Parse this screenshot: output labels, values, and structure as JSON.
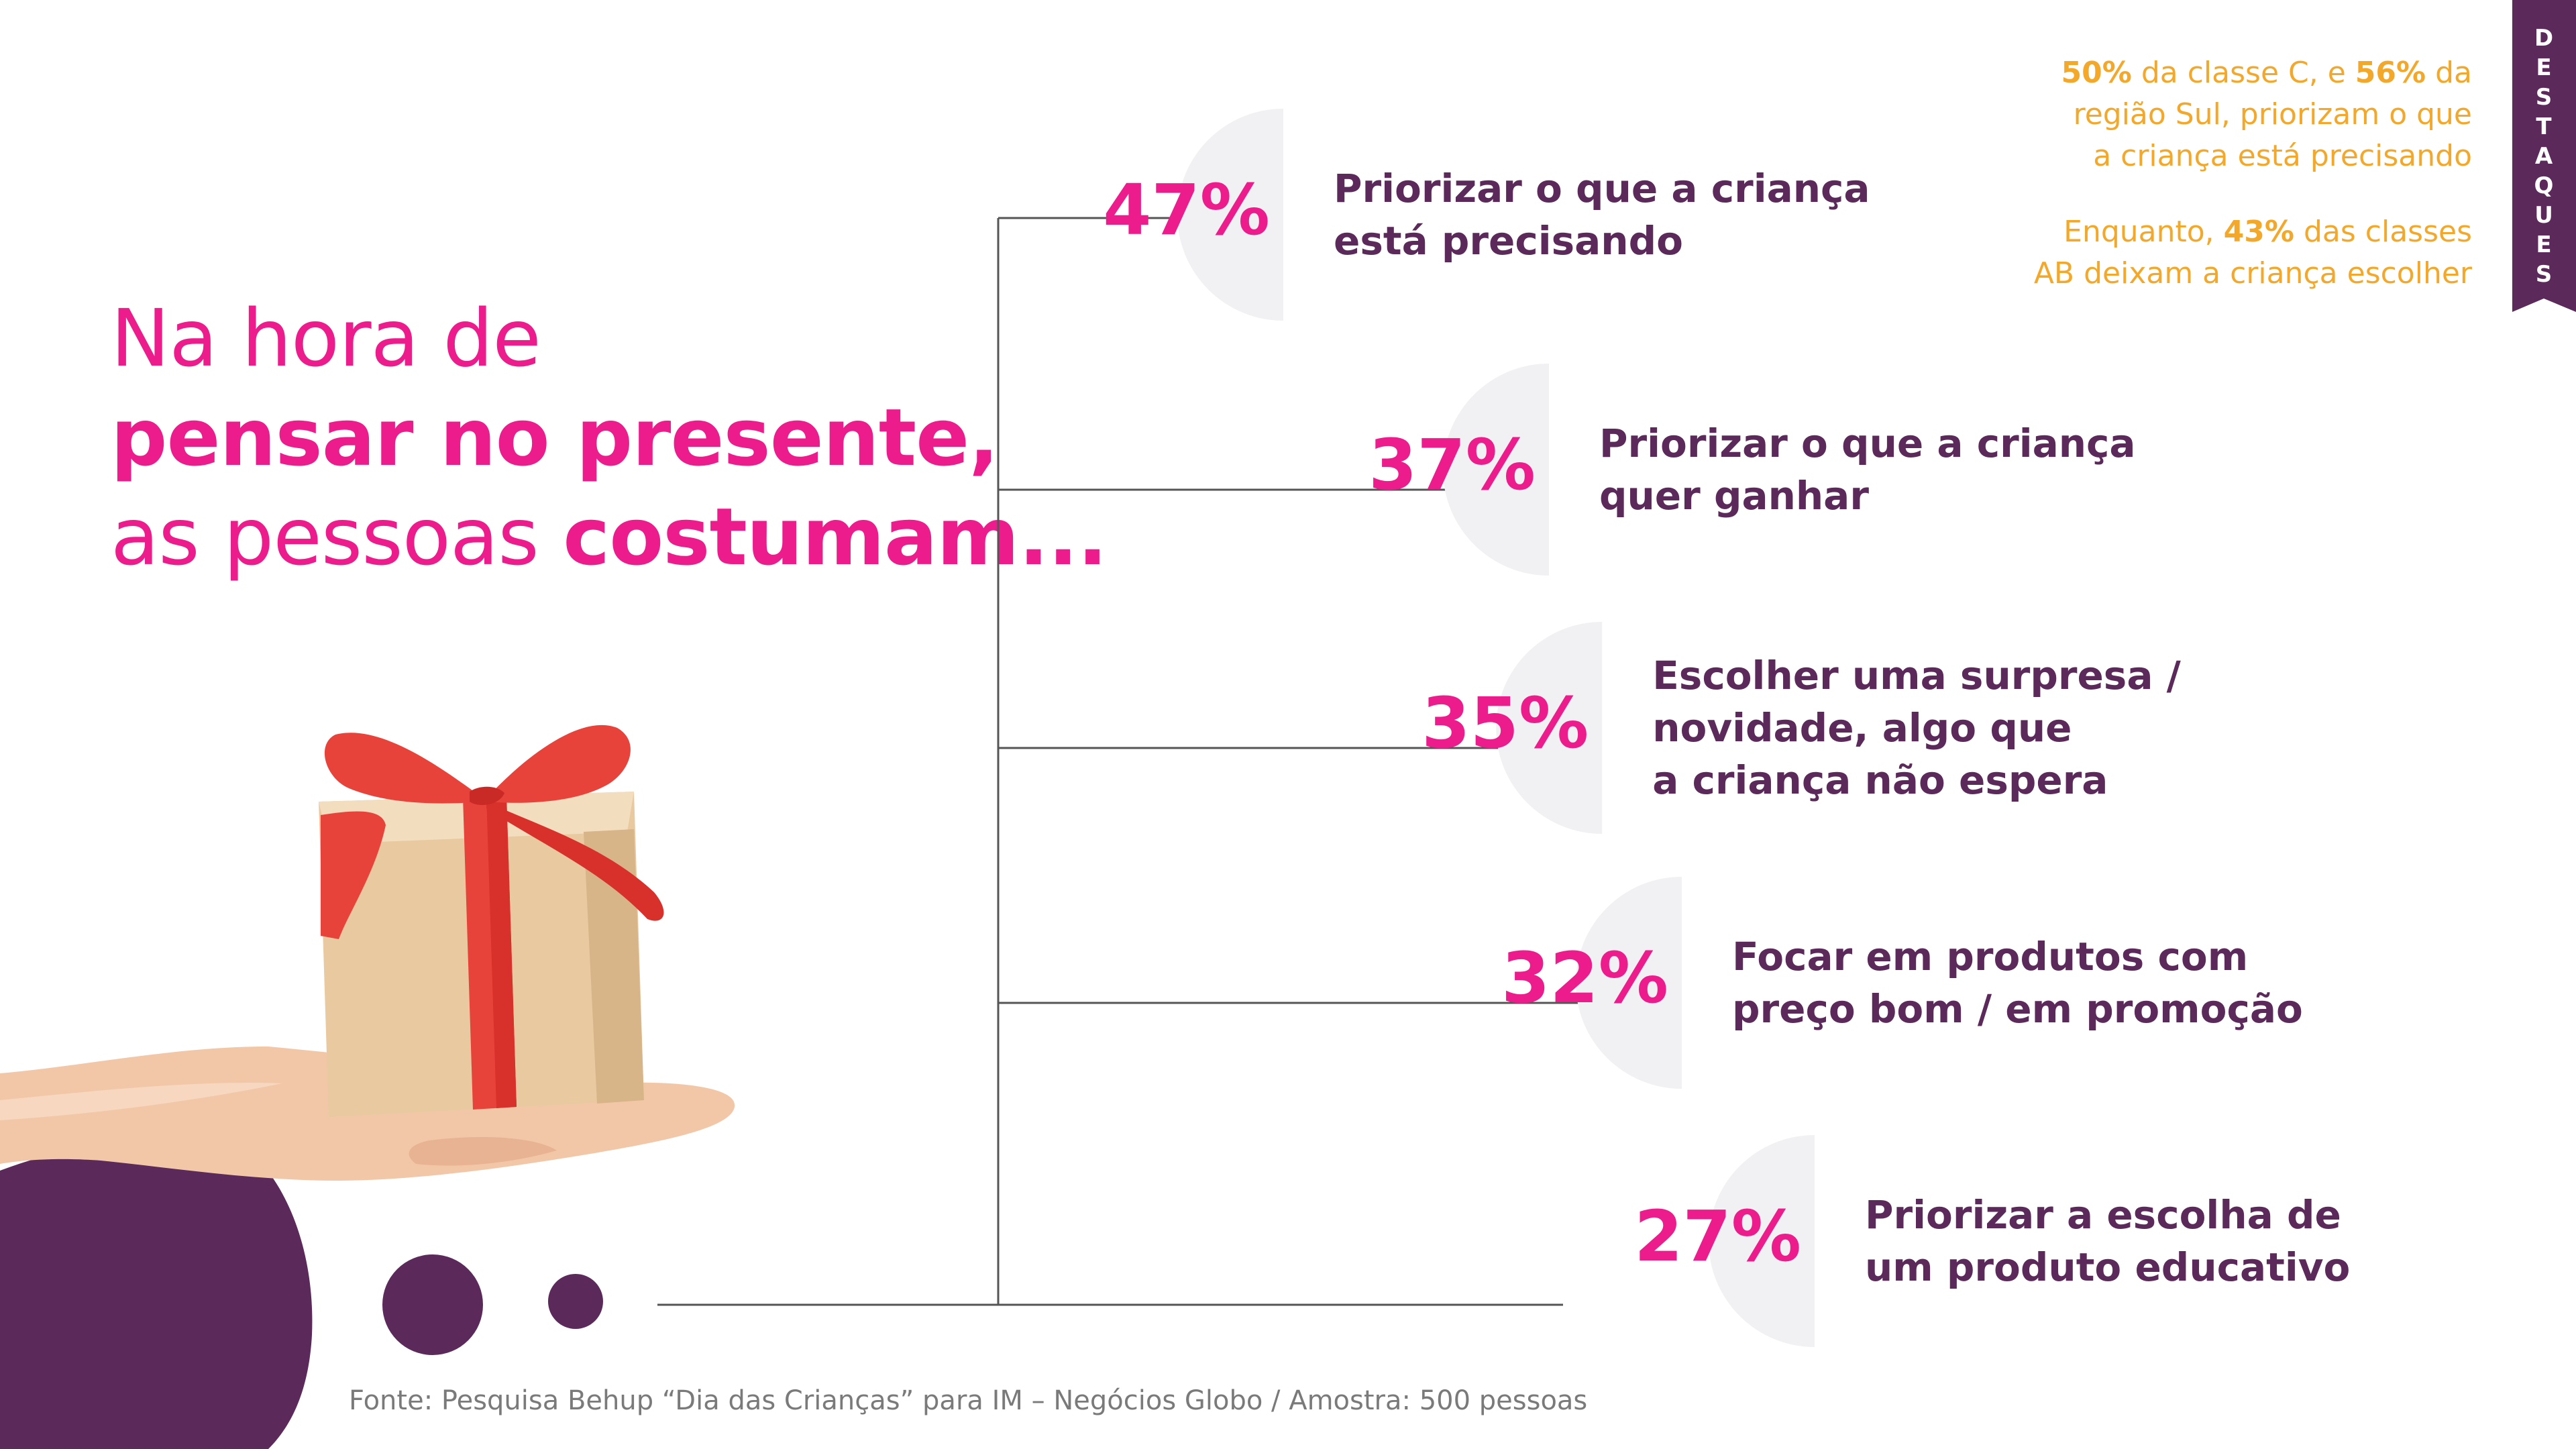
{
  "headline": {
    "line1": "Na hora de",
    "line2": "pensar no presente,",
    "line3_regular": "as pessoas ",
    "line3_bold": "costumam..."
  },
  "chart_data": {
    "type": "bar",
    "title": "Na hora de pensar no presente, as pessoas costumam...",
    "categories": [
      "Priorizar o que a criança está precisando",
      "Priorizar o que a criança quer ganhar",
      "Escolher uma surpresa / novidade, algo que a criança não espera",
      "Focar em produtos com preço bom / em promoção",
      "Priorizar a escolha de um produto educativo"
    ],
    "values": [
      47,
      37,
      35,
      32,
      27
    ],
    "value_labels": [
      "47%",
      "37%",
      "35%",
      "32%",
      "27%"
    ],
    "label_lines": [
      [
        "Priorizar o que a criança",
        "está precisando"
      ],
      [
        "Priorizar o que a criança",
        "quer ganhar"
      ],
      [
        "Escolher uma surpresa /",
        "novidade, algo que",
        "a criança não espera"
      ],
      [
        "Focar em produtos com",
        "preço bom / em promoção"
      ],
      [
        "Priorizar a escolha de",
        "um produto educativo"
      ]
    ],
    "xlabel": "",
    "ylabel": "",
    "grid": false
  },
  "highlights": {
    "ribbon_letters": [
      "D",
      "E",
      "S",
      "T",
      "A",
      "Q",
      "U",
      "E",
      "S"
    ],
    "item1": {
      "v1": "50%",
      "t1": " da classe C, e ",
      "v2": "56%",
      "t2": " da",
      "line2": "região Sul, priorizam o que",
      "line3": "a criança está precisando"
    },
    "item2": {
      "t1": "Enquanto, ",
      "v1": "43%",
      "t2": " das classes",
      "line2": "AB deixam a criança escolher"
    }
  },
  "source": "Fonte: Pesquisa Behup “Dia das Crianças” para  IM – Negócios Globo / Amostra: 500 pessoas",
  "colors": {
    "accent_pink": "#ec1c8c",
    "dark_purple": "#5b2a5a",
    "highlight_orange": "#f4a82a",
    "circle_gray": "#f1f1f3",
    "line_gray": "#555555",
    "ribbon": "#5b2a5a"
  }
}
